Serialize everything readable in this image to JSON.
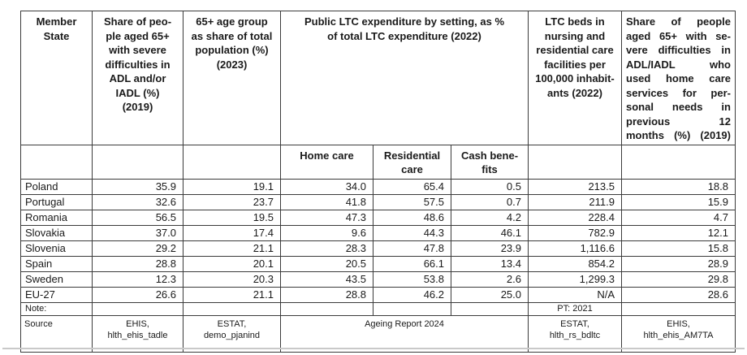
{
  "table": {
    "header": {
      "member_state": "Member\nState",
      "adl_share": "Share of peo-\nple aged 65+\nwith severe\ndifficulties in\nADL and/or\nIADL (%)\n(2019)",
      "age_group": "65+ age group\nas share of total\npopulation (%)\n(2023)",
      "expenditure_group": "Public LTC expenditure by setting, as %\nof total LTC expenditure (2022)",
      "sub_home_care": "Home care",
      "sub_residential_care": "Residential\ncare",
      "sub_cash_benefits": "Cash bene-\nfits",
      "ltc_beds": "LTC beds in\nnursing and\nresidential care\nfacilities per\n100,000 inhabit-\nants (2022)",
      "home_care_use": "Share of people\naged 65+ with se-\nvere difficulties in\nADL/IADL who\nused home care\nservices for per-\nsonal needs in\nprevious 12\nmonths (%) (2019)"
    },
    "rows": [
      {
        "cells": [
          "Poland",
          "35.9",
          "19.1",
          "34.0",
          "65.4",
          "0.5",
          "213.5",
          "18.8"
        ]
      },
      {
        "cells": [
          "Portugal",
          "32.6",
          "23.7",
          "41.8",
          "57.5",
          "0.7",
          "211.9",
          "15.9"
        ]
      },
      {
        "cells": [
          "Romania",
          "56.5",
          "19.5",
          "47.3",
          "48.6",
          "4.2",
          "228.4",
          "4.7"
        ]
      },
      {
        "cells": [
          "Slovakia",
          "37.0",
          "17.4",
          "9.6",
          "44.3",
          "46.1",
          "782.9",
          "12.1"
        ]
      },
      {
        "cells": [
          "Slovenia",
          "29.2",
          "21.1",
          "28.3",
          "47.8",
          "23.9",
          "1,116.6",
          "15.8"
        ]
      },
      {
        "cells": [
          "Spain",
          "28.8",
          "20.1",
          "20.5",
          "66.1",
          "13.4",
          "854.2",
          "28.9"
        ]
      },
      {
        "cells": [
          "Sweden",
          "12.3",
          "20.3",
          "43.5",
          "53.8",
          "2.6",
          "1,299.3",
          "29.8"
        ]
      },
      {
        "cells": [
          "EU-27",
          "26.6",
          "21.1",
          "28.8",
          "46.2",
          "25.0",
          "N/A",
          "28.6"
        ]
      }
    ],
    "note_row": {
      "label": "Note:",
      "ltc_beds_note": "PT: 2021"
    },
    "source_row": {
      "label": "Source",
      "adl_source": "EHIS,\nhlth_ehis_tadle",
      "age_source": "ESTAT,\ndemo_pjanind",
      "expenditure_source": "Ageing Report 2024",
      "ltc_beds_source": "ESTAT,\nhlth_rs_bdltc",
      "home_care_source": "EHIS,\nhlth_ehis_AM7TA"
    }
  }
}
